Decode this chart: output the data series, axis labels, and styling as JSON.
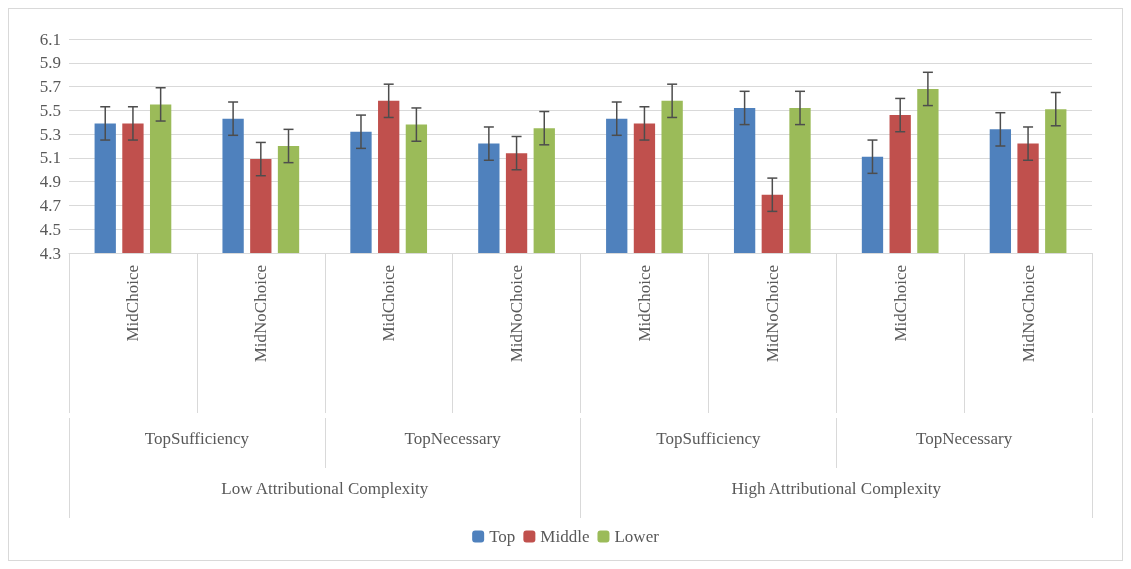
{
  "chart_data": {
    "type": "bar",
    "categories": [
      "MidChoice",
      "MidNoChoice",
      "MidChoice",
      "MidNoChoice",
      "MidChoice",
      "MidNoChoice",
      "MidChoice",
      "MidNoChoice"
    ],
    "series": [
      {
        "name": "Top",
        "color": "#4f81bd",
        "values": [
          5.39,
          5.43,
          5.32,
          5.22,
          5.43,
          5.52,
          5.11,
          5.34
        ],
        "errors": [
          0.14,
          0.14,
          0.14,
          0.14,
          0.14,
          0.14,
          0.14,
          0.14
        ]
      },
      {
        "name": "Middle",
        "color": "#c0504d",
        "values": [
          5.39,
          5.09,
          5.58,
          5.14,
          5.39,
          4.79,
          5.46,
          5.22
        ],
        "errors": [
          0.14,
          0.14,
          0.14,
          0.14,
          0.14,
          0.14,
          0.14,
          0.14
        ]
      },
      {
        "name": "Lower",
        "color": "#9bbb59",
        "values": [
          5.55,
          5.2,
          5.38,
          5.35,
          5.58,
          5.52,
          5.68,
          5.51
        ],
        "errors": [
          0.14,
          0.14,
          0.14,
          0.14,
          0.14,
          0.14,
          0.14,
          0.14
        ]
      }
    ],
    "annotations": [
      "TopSufficiency",
      "TopNecessary",
      "TopSufficiency",
      "TopNecessary",
      "Low Attributional Complexity",
      "High Attributional Complexity"
    ],
    "ylim": [
      4.3,
      6.1
    ],
    "yticks": [
      4.3,
      4.5,
      4.7,
      4.9,
      5.1,
      5.3,
      5.5,
      5.7,
      5.9,
      6.1
    ],
    "grid": "y",
    "legend": "bottom"
  }
}
